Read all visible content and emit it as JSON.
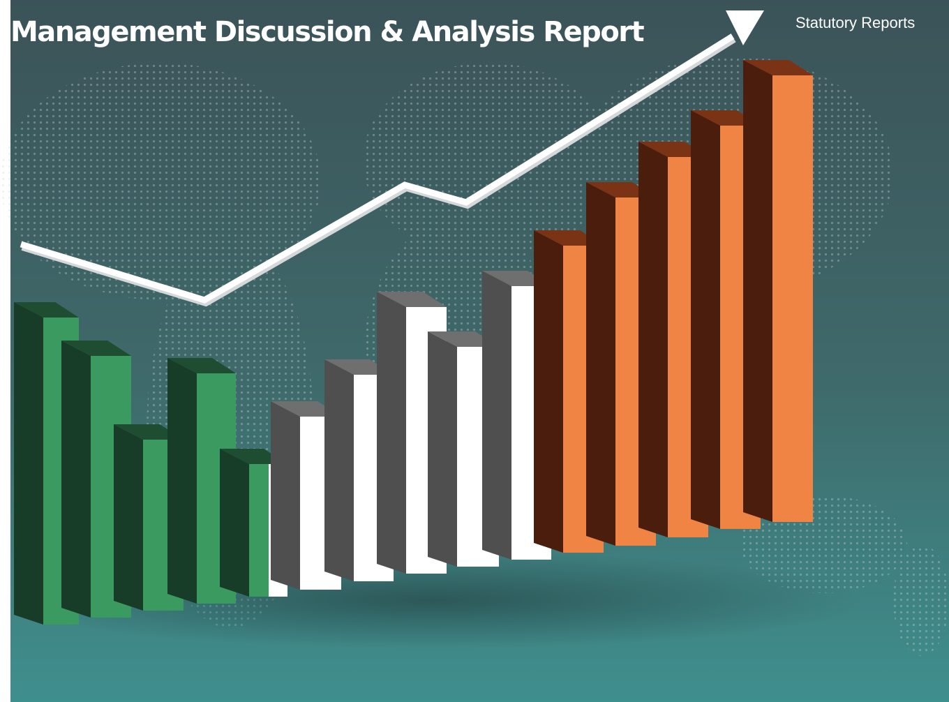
{
  "header": {
    "title": "Management Discussion & Analysis Report",
    "section": "Statutory Reports"
  }
}
